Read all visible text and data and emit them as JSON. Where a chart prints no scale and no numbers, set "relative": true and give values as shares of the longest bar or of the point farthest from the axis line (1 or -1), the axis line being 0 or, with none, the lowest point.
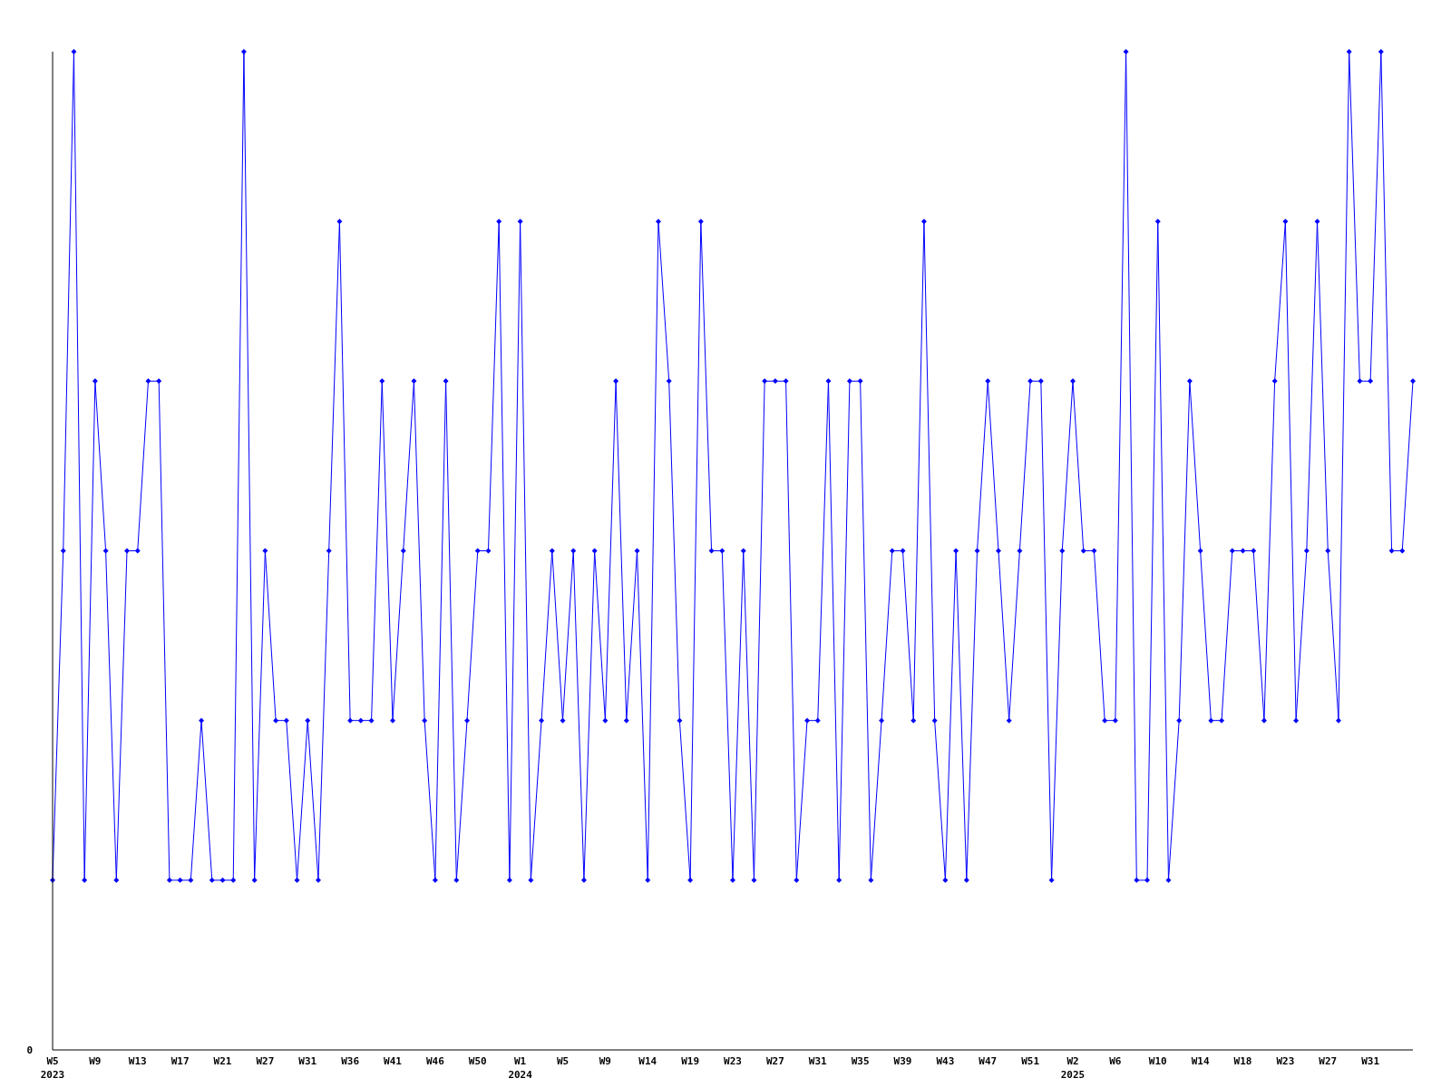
{
  "chart_data": {
    "type": "line",
    "relative": true,
    "annotations": [
      "0"
    ],
    "color": "#0000ff",
    "marker": "diamond",
    "line_style": "solid",
    "categories": [
      "W5\n2023",
      null,
      null,
      null,
      "W9",
      null,
      null,
      null,
      "W13",
      null,
      null,
      null,
      "W17",
      null,
      null,
      null,
      "W21",
      null,
      null,
      null,
      "W27",
      null,
      null,
      null,
      "W31",
      null,
      null,
      null,
      "W36",
      null,
      null,
      null,
      "W41",
      null,
      null,
      null,
      "W46",
      null,
      null,
      null,
      "W50",
      null,
      null,
      null,
      "W1\n2024",
      null,
      null,
      null,
      "W5",
      null,
      null,
      null,
      "W9",
      null,
      null,
      null,
      "W14",
      null,
      null,
      null,
      "W19",
      null,
      null,
      null,
      "W23",
      null,
      null,
      null,
      "W27",
      null,
      null,
      null,
      "W31",
      null,
      null,
      null,
      "W35",
      null,
      null,
      null,
      "W39",
      null,
      null,
      null,
      "W43",
      null,
      null,
      null,
      "W47",
      null,
      null,
      null,
      "W51",
      null,
      null,
      null,
      "W2\n2025",
      null,
      null,
      null,
      "W6",
      null,
      null,
      null,
      "W10",
      null,
      null,
      null,
      "W14",
      null,
      null,
      null,
      "W18",
      null,
      null,
      null,
      "W23",
      null,
      null,
      null,
      "W27",
      null,
      null,
      null,
      "W31",
      null,
      null,
      null,
      null
    ],
    "values": [
      0.17,
      0.5,
      1,
      0.17,
      0.67,
      0.5,
      0.17,
      0.5,
      0.5,
      0.67,
      0.67,
      0.17,
      0.17,
      0.17,
      0.33,
      0.17,
      0.17,
      0.17,
      1,
      0.17,
      0.5,
      0.33,
      0.33,
      0.17,
      0.33,
      0.17,
      0.5,
      0.83,
      0.33,
      0.33,
      0.33,
      0.67,
      0.33,
      0.5,
      0.67,
      0.33,
      0.17,
      0.67,
      0.17,
      0.33,
      0.5,
      0.5,
      0.83,
      0.17,
      0.83,
      0.17,
      0.33,
      0.5,
      0.33,
      0.5,
      0.17,
      0.5,
      0.33,
      0.67,
      0.33,
      0.5,
      0.17,
      0.83,
      0.67,
      0.33,
      0.17,
      0.83,
      0.5,
      0.5,
      0.17,
      0.5,
      0.17,
      0.67,
      0.67,
      0.67,
      0.17,
      0.33,
      0.33,
      0.67,
      0.17,
      0.67,
      0.67,
      0.17,
      0.33,
      0.5,
      0.5,
      0.33,
      0.83,
      0.33,
      0.17,
      0.5,
      0.17,
      0.5,
      0.67,
      0.5,
      0.33,
      0.5,
      0.67,
      0.67,
      0.17,
      0.5,
      0.67,
      0.5,
      0.5,
      0.33,
      0.33,
      1,
      0.17,
      0.17,
      0.83,
      0.17,
      0.33,
      0.67,
      0.5,
      0.33,
      0.33,
      0.5,
      0.5,
      0.5,
      0.33,
      0.67,
      0.83,
      0.33,
      0.5,
      0.83,
      0.5,
      0.33,
      1,
      0.67,
      0.67,
      1,
      0.5,
      0.5,
      0.67
    ]
  }
}
